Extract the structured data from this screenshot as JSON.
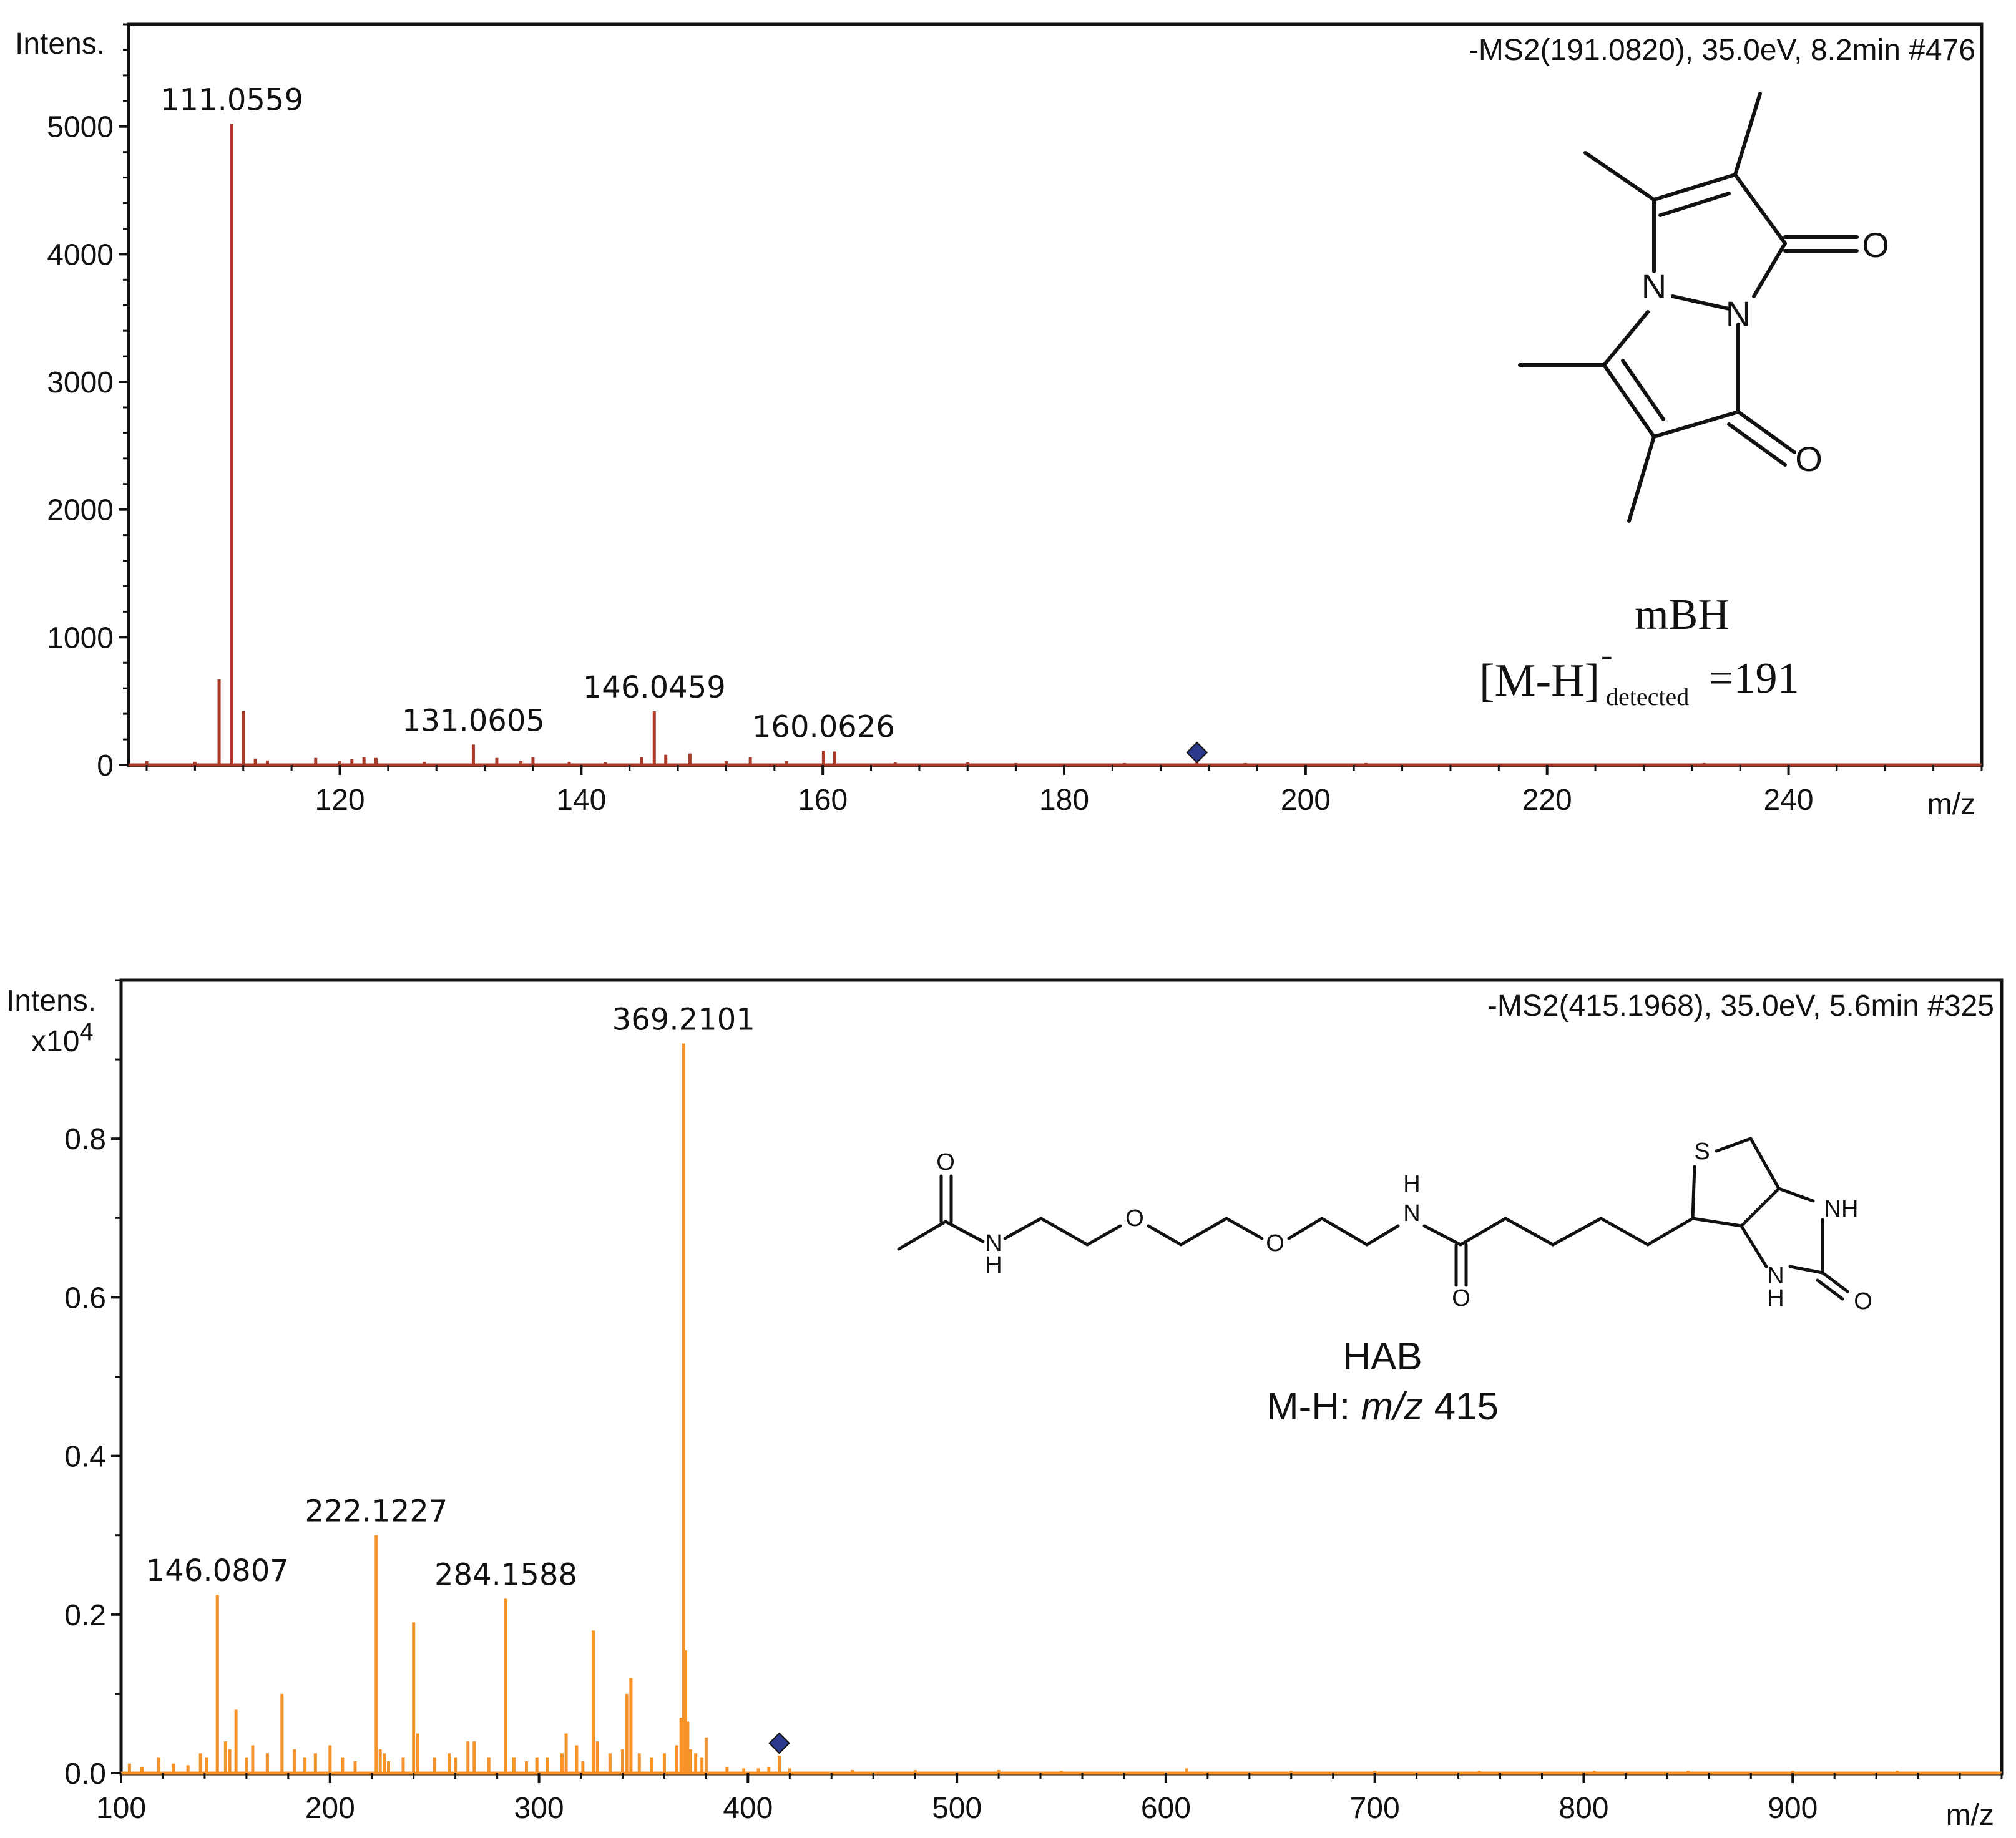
{
  "chart_data": [
    {
      "type": "bar",
      "spectrum_type": "ms2",
      "header": "-MS2(191.0820), 35.0eV, 8.2min #476",
      "ylabel": "Intens.",
      "xlabel": "m/z",
      "xlim": [
        102.5,
        256
      ],
      "ylim": [
        0,
        5800
      ],
      "y_ticks": [
        0,
        1000,
        2000,
        3000,
        4000,
        5000
      ],
      "y_tick_labels": [
        "0",
        "1000",
        "2000",
        "3000",
        "4000",
        "5000"
      ],
      "x_ticks": [
        120,
        140,
        160,
        180,
        200,
        220,
        240
      ],
      "x_tick_labels": [
        "120",
        "140",
        "160",
        "180",
        "200",
        "220",
        "240"
      ],
      "color": "#a83a2a",
      "precursor_mz": 191,
      "peaks": [
        {
          "x": 104.0,
          "y": 30
        },
        {
          "x": 108.0,
          "y": 25
        },
        {
          "x": 110.0,
          "y": 670
        },
        {
          "x": 111.0559,
          "y": 5020,
          "label": "111.0559"
        },
        {
          "x": 112.0,
          "y": 420
        },
        {
          "x": 113.0,
          "y": 50
        },
        {
          "x": 114.0,
          "y": 35
        },
        {
          "x": 118.0,
          "y": 55
        },
        {
          "x": 120.0,
          "y": 30
        },
        {
          "x": 121.0,
          "y": 45
        },
        {
          "x": 122.0,
          "y": 60
        },
        {
          "x": 123.0,
          "y": 55
        },
        {
          "x": 127.0,
          "y": 25
        },
        {
          "x": 131.0605,
          "y": 160,
          "label": "131.0605"
        },
        {
          "x": 133.0,
          "y": 55
        },
        {
          "x": 135.0,
          "y": 30
        },
        {
          "x": 136.0,
          "y": 60
        },
        {
          "x": 139.0,
          "y": 25
        },
        {
          "x": 142.0,
          "y": 20
        },
        {
          "x": 145.0,
          "y": 60
        },
        {
          "x": 146.0459,
          "y": 420,
          "label": "146.0459"
        },
        {
          "x": 147.0,
          "y": 80
        },
        {
          "x": 149.0,
          "y": 90
        },
        {
          "x": 152.0,
          "y": 30
        },
        {
          "x": 154.0,
          "y": 60
        },
        {
          "x": 157.0,
          "y": 30
        },
        {
          "x": 160.0626,
          "y": 110,
          "label": "160.0626"
        },
        {
          "x": 161.0,
          "y": 105
        },
        {
          "x": 166.0,
          "y": 20
        },
        {
          "x": 172.0,
          "y": 20
        },
        {
          "x": 176.0,
          "y": 15
        },
        {
          "x": 185.0,
          "y": 15
        },
        {
          "x": 191.0,
          "y": 25
        },
        {
          "x": 195.0,
          "y": 15
        },
        {
          "x": 205.0,
          "y": 15
        },
        {
          "x": 214.0,
          "y": 12
        },
        {
          "x": 233.0,
          "y": 15
        },
        {
          "x": 237.0,
          "y": 12
        },
        {
          "x": 250.0,
          "y": 10
        }
      ]
    },
    {
      "type": "bar",
      "spectrum_type": "ms2",
      "header": "-MS2(415.1968), 35.0eV, 5.6min #325",
      "ylabel": "Intens.",
      "yscale_label": "x10",
      "yscale_exponent": "4",
      "xlabel": "m/z",
      "xlim": [
        100,
        1000
      ],
      "ylim": [
        0,
        1.0
      ],
      "y_ticks": [
        0.0,
        0.2,
        0.4,
        0.6,
        0.8
      ],
      "y_tick_labels": [
        "0.0",
        "0.2",
        "0.4",
        "0.6",
        "0.8"
      ],
      "x_ticks": [
        100,
        200,
        300,
        400,
        500,
        600,
        700,
        800,
        900
      ],
      "x_tick_labels": [
        "100",
        "200",
        "300",
        "400",
        "500",
        "600",
        "700",
        "800",
        "900"
      ],
      "color": "#f5932a",
      "precursor_mz": 415,
      "peaks": [
        {
          "x": 104,
          "y": 0.012
        },
        {
          "x": 110,
          "y": 0.008
        },
        {
          "x": 118,
          "y": 0.02
        },
        {
          "x": 125,
          "y": 0.012
        },
        {
          "x": 132,
          "y": 0.01
        },
        {
          "x": 138,
          "y": 0.025
        },
        {
          "x": 141,
          "y": 0.02
        },
        {
          "x": 146.0807,
          "y": 0.225,
          "label": "146.0807"
        },
        {
          "x": 150,
          "y": 0.04
        },
        {
          "x": 152,
          "y": 0.03
        },
        {
          "x": 155,
          "y": 0.08
        },
        {
          "x": 160,
          "y": 0.02
        },
        {
          "x": 163,
          "y": 0.035
        },
        {
          "x": 170,
          "y": 0.025
        },
        {
          "x": 177,
          "y": 0.1
        },
        {
          "x": 183,
          "y": 0.03
        },
        {
          "x": 188,
          "y": 0.02
        },
        {
          "x": 193,
          "y": 0.025
        },
        {
          "x": 200,
          "y": 0.035
        },
        {
          "x": 206,
          "y": 0.02
        },
        {
          "x": 212,
          "y": 0.015
        },
        {
          "x": 222.1227,
          "y": 0.3,
          "label": "222.1227"
        },
        {
          "x": 224,
          "y": 0.03
        },
        {
          "x": 226,
          "y": 0.025
        },
        {
          "x": 228,
          "y": 0.015
        },
        {
          "x": 235,
          "y": 0.02
        },
        {
          "x": 240,
          "y": 0.19
        },
        {
          "x": 242,
          "y": 0.05
        },
        {
          "x": 250,
          "y": 0.02
        },
        {
          "x": 257,
          "y": 0.025
        },
        {
          "x": 260,
          "y": 0.02
        },
        {
          "x": 266,
          "y": 0.04
        },
        {
          "x": 269,
          "y": 0.04
        },
        {
          "x": 276,
          "y": 0.02
        },
        {
          "x": 284.1588,
          "y": 0.22,
          "label": "284.1588"
        },
        {
          "x": 288,
          "y": 0.02
        },
        {
          "x": 294,
          "y": 0.015
        },
        {
          "x": 299,
          "y": 0.02
        },
        {
          "x": 304,
          "y": 0.02
        },
        {
          "x": 311,
          "y": 0.025
        },
        {
          "x": 313,
          "y": 0.05
        },
        {
          "x": 318,
          "y": 0.035
        },
        {
          "x": 321,
          "y": 0.015
        },
        {
          "x": 326,
          "y": 0.18
        },
        {
          "x": 328,
          "y": 0.04
        },
        {
          "x": 334,
          "y": 0.025
        },
        {
          "x": 340,
          "y": 0.03
        },
        {
          "x": 342,
          "y": 0.1
        },
        {
          "x": 344,
          "y": 0.12
        },
        {
          "x": 348,
          "y": 0.025
        },
        {
          "x": 354,
          "y": 0.02
        },
        {
          "x": 360,
          "y": 0.025
        },
        {
          "x": 366,
          "y": 0.035
        },
        {
          "x": 368,
          "y": 0.07
        },
        {
          "x": 369.2101,
          "y": 0.92,
          "label": "369.2101"
        },
        {
          "x": 370.2,
          "y": 0.155
        },
        {
          "x": 371.2,
          "y": 0.065
        },
        {
          "x": 372.5,
          "y": 0.03
        },
        {
          "x": 375,
          "y": 0.025
        },
        {
          "x": 378,
          "y": 0.02
        },
        {
          "x": 380,
          "y": 0.045
        },
        {
          "x": 390,
          "y": 0.008
        },
        {
          "x": 398,
          "y": 0.006
        },
        {
          "x": 405,
          "y": 0.006
        },
        {
          "x": 410,
          "y": 0.008
        },
        {
          "x": 415,
          "y": 0.022
        },
        {
          "x": 420,
          "y": 0.006
        },
        {
          "x": 450,
          "y": 0.004
        },
        {
          "x": 480,
          "y": 0.004
        },
        {
          "x": 520,
          "y": 0.004
        },
        {
          "x": 550,
          "y": 0.003
        },
        {
          "x": 610,
          "y": 0.006
        },
        {
          "x": 660,
          "y": 0.003
        },
        {
          "x": 700,
          "y": 0.003
        },
        {
          "x": 750,
          "y": 0.003
        },
        {
          "x": 805,
          "y": 0.003
        },
        {
          "x": 850,
          "y": 0.003
        },
        {
          "x": 900,
          "y": 0.003
        },
        {
          "x": 950,
          "y": 0.003
        }
      ]
    }
  ],
  "structure_top": {
    "name": "mBH",
    "ion_bracket_open": "[",
    "ion_formula": "M-H",
    "ion_bracket_close": "]",
    "ion_charge": "-",
    "ion_subscript": "detected",
    "ion_value": "=191",
    "atoms": {
      "n1": "N",
      "n2": "N",
      "o1": "O",
      "o2": "O"
    }
  },
  "structure_bottom": {
    "name": "HAB",
    "mh_prefix": "M-H: ",
    "mh_unit": "m/z",
    "mh_value": " 415",
    "atoms": {
      "o_acetyl": "O",
      "n1": "N",
      "h1": "H",
      "o_ether1": "O",
      "o_ether2": "O",
      "n2": "N",
      "h2": "H",
      "o_amide": "O",
      "s": "S",
      "nh_top": "NH",
      "n3": "N",
      "h3": "H",
      "o_urea": "O"
    }
  }
}
